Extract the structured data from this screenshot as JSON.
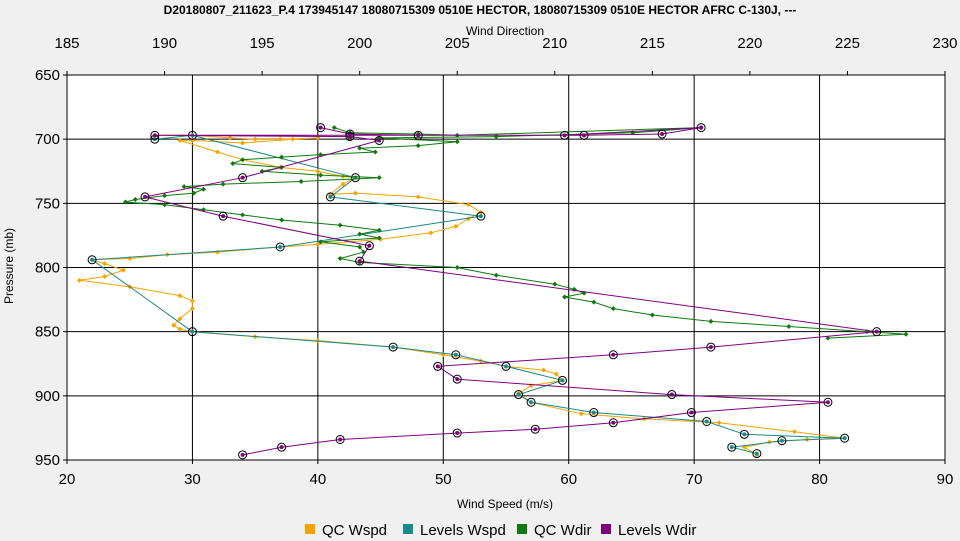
{
  "chart_data": {
    "type": "line",
    "title": "D20180807_211623_P.4 173945147 18080715309 0510E HECTOR, 18080715309 0510E HECTOR AFRC C-130J, ---",
    "xlabel_bottom": "Wind Speed (m/s)",
    "xlabel_top": "Wind Direction",
    "ylabel": "Pressure (mb)",
    "xlim_bottom": [
      20,
      90
    ],
    "xlim_top": [
      185,
      230
    ],
    "ylim": [
      650,
      950
    ],
    "y_inverted": true,
    "grid": true,
    "legend_position": "bottom",
    "bottom_ticks": [
      "20",
      "30",
      "40",
      "50",
      "60",
      "70",
      "80",
      "90"
    ],
    "top_ticks": [
      "185",
      "190",
      "195",
      "200",
      "205",
      "210",
      "215",
      "220",
      "225",
      "230"
    ],
    "y_ticks": [
      "650",
      "700",
      "750",
      "800",
      "850",
      "900",
      "950"
    ],
    "series": [
      {
        "name": "QC Wspd",
        "color": "#f5a300",
        "axis": "bottom",
        "marker": "diamond",
        "points": [
          [
            27,
            697
          ],
          [
            30,
            697
          ],
          [
            33,
            699
          ],
          [
            35,
            700
          ],
          [
            37,
            700
          ],
          [
            40,
            699
          ],
          [
            38,
            700
          ],
          [
            34,
            703
          ],
          [
            30,
            701
          ],
          [
            29,
            701
          ],
          [
            32,
            710
          ],
          [
            34,
            716
          ],
          [
            37,
            722
          ],
          [
            40,
            725
          ],
          [
            42,
            729
          ],
          [
            43,
            730
          ],
          [
            42,
            735
          ],
          [
            41,
            743
          ],
          [
            43,
            742
          ],
          [
            48,
            745
          ],
          [
            52,
            751
          ],
          [
            53,
            757
          ],
          [
            52,
            762
          ],
          [
            51,
            768
          ],
          [
            49,
            773
          ],
          [
            45,
            778
          ],
          [
            40,
            782
          ],
          [
            37,
            784
          ],
          [
            32,
            788
          ],
          [
            28,
            790
          ],
          [
            25,
            793
          ],
          [
            22,
            794
          ],
          [
            23,
            797
          ],
          [
            24.5,
            802
          ],
          [
            23,
            807
          ],
          [
            21,
            810
          ],
          [
            25,
            815
          ],
          [
            29,
            822
          ],
          [
            30,
            826
          ],
          [
            30,
            832
          ],
          [
            29,
            840
          ],
          [
            28.5,
            845
          ],
          [
            29,
            848
          ],
          [
            30,
            850
          ],
          [
            35,
            854
          ],
          [
            40,
            857
          ],
          [
            46,
            862
          ],
          [
            50,
            868
          ],
          [
            53,
            873
          ],
          [
            55,
            877
          ],
          [
            58,
            880
          ],
          [
            59,
            883
          ],
          [
            59.5,
            888
          ],
          [
            57,
            892
          ],
          [
            56,
            898
          ],
          [
            57,
            905
          ],
          [
            61,
            914
          ],
          [
            66,
            918
          ],
          [
            72,
            921
          ],
          [
            78,
            928
          ],
          [
            82,
            933
          ],
          [
            79,
            934
          ],
          [
            76,
            936
          ],
          [
            74,
            940
          ],
          [
            75,
            946
          ]
        ]
      },
      {
        "name": "Levels Wspd",
        "color": "#1a8a8a",
        "axis": "bottom",
        "marker": "circle",
        "points": [
          [
            27,
            700
          ],
          [
            30,
            697
          ],
          [
            43,
            730
          ],
          [
            41,
            745
          ],
          [
            53,
            760
          ],
          [
            37,
            784
          ],
          [
            22,
            794
          ],
          [
            30,
            850
          ],
          [
            46,
            862
          ],
          [
            51,
            868
          ],
          [
            55,
            877
          ],
          [
            59.5,
            888
          ],
          [
            56,
            899
          ],
          [
            57,
            905
          ],
          [
            62,
            913
          ],
          [
            71,
            920
          ],
          [
            74,
            930
          ],
          [
            82,
            933
          ],
          [
            77,
            935
          ],
          [
            73,
            940
          ],
          [
            75,
            945
          ]
        ]
      },
      {
        "name": "QC Wdir",
        "color": "#0d7a0d",
        "axis": "top",
        "marker": "diamond",
        "points": [
          [
            198.7,
            691
          ],
          [
            199.5,
            695
          ],
          [
            203,
            696
          ],
          [
            205,
            697
          ],
          [
            217.5,
            691
          ],
          [
            214,
            695
          ],
          [
            207,
            698
          ],
          [
            201,
            699
          ],
          [
            205,
            702
          ],
          [
            203,
            705
          ],
          [
            200,
            707
          ],
          [
            200.8,
            710
          ],
          [
            198,
            712
          ],
          [
            196,
            714
          ],
          [
            194,
            716
          ],
          [
            193.5,
            719
          ],
          [
            196,
            722
          ],
          [
            195,
            725
          ],
          [
            198,
            728
          ],
          [
            201,
            730
          ],
          [
            197,
            733
          ],
          [
            193,
            735
          ],
          [
            191,
            737
          ],
          [
            192,
            739
          ],
          [
            191.5,
            742
          ],
          [
            190,
            744
          ],
          [
            188.5,
            747
          ],
          [
            188,
            749
          ],
          [
            190,
            751
          ],
          [
            192,
            755
          ],
          [
            194,
            759
          ],
          [
            196,
            763
          ],
          [
            199,
            767
          ],
          [
            201,
            771
          ],
          [
            200,
            774
          ],
          [
            201,
            777
          ],
          [
            198,
            780
          ],
          [
            200,
            784
          ],
          [
            200.2,
            788
          ],
          [
            199,
            793
          ],
          [
            200,
            796
          ],
          [
            205,
            800
          ],
          [
            207,
            806
          ],
          [
            210,
            813
          ],
          [
            211,
            817
          ],
          [
            211.5,
            820
          ],
          [
            210.5,
            823
          ],
          [
            212,
            827
          ],
          [
            213,
            832
          ],
          [
            215,
            837
          ],
          [
            218,
            842
          ],
          [
            222,
            846
          ],
          [
            226,
            850
          ],
          [
            228,
            852
          ],
          [
            224,
            855
          ]
        ]
      },
      {
        "name": "Levels Wdir",
        "color": "#800080",
        "axis": "top",
        "marker": "circle",
        "points": [
          [
            198,
            691
          ],
          [
            199.5,
            696
          ],
          [
            203,
            697
          ],
          [
            210.5,
            697
          ],
          [
            217.5,
            691
          ],
          [
            215.5,
            696
          ],
          [
            211.5,
            697
          ],
          [
            189.5,
            697
          ],
          [
            199.5,
            698
          ],
          [
            201,
            701
          ],
          [
            194,
            730
          ],
          [
            189,
            745
          ],
          [
            193,
            760
          ],
          [
            200.5,
            783
          ],
          [
            200,
            795
          ],
          [
            226.5,
            850
          ],
          [
            218,
            862
          ],
          [
            213,
            868
          ],
          [
            204,
            877
          ],
          [
            205,
            887
          ],
          [
            216,
            899
          ],
          [
            224,
            905
          ],
          [
            217,
            913
          ],
          [
            213,
            921
          ],
          [
            209,
            926
          ],
          [
            205,
            929
          ],
          [
            199,
            934
          ],
          [
            196,
            940
          ],
          [
            194,
            946
          ]
        ]
      }
    ]
  }
}
